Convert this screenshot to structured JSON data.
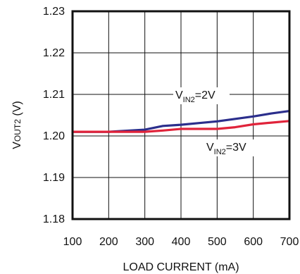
{
  "chart_data": {
    "type": "line",
    "xlabel": "LOAD CURRENT (mA)",
    "ylabel": "VOUT2 (V)",
    "ylabel_parts": {
      "main": "V",
      "sub": "OUT2",
      "unit": " (V)"
    },
    "xlim": [
      100,
      700
    ],
    "ylim": [
      1.18,
      1.23
    ],
    "x_ticks": [
      "100",
      "200",
      "300",
      "400",
      "500",
      "600",
      "700"
    ],
    "y_ticks": [
      "1.18",
      "1.19",
      "1.20",
      "1.21",
      "1.22",
      "1.23"
    ],
    "grid": true,
    "series": [
      {
        "name": "VIN2=2V",
        "label_parts": {
          "main": "V",
          "sub": "IN2",
          "rest": "=2V"
        },
        "color": "#2b2e8c",
        "x": [
          100,
          200,
          300,
          350,
          400,
          450,
          500,
          550,
          600,
          650,
          700
        ],
        "y": [
          1.201,
          1.201,
          1.2015,
          1.2024,
          1.2027,
          1.2031,
          1.2035,
          1.2041,
          1.2047,
          1.2054,
          1.206
        ]
      },
      {
        "name": "VIN2=3V",
        "label_parts": {
          "main": "V",
          "sub": "IN2",
          "rest": "=3V"
        },
        "color": "#e0233a",
        "x": [
          100,
          200,
          300,
          350,
          400,
          450,
          500,
          550,
          600,
          650,
          700
        ],
        "y": [
          1.201,
          1.201,
          1.201,
          1.2013,
          1.2017,
          1.2017,
          1.2017,
          1.2021,
          1.2028,
          1.2032,
          1.2036
        ]
      }
    ]
  }
}
